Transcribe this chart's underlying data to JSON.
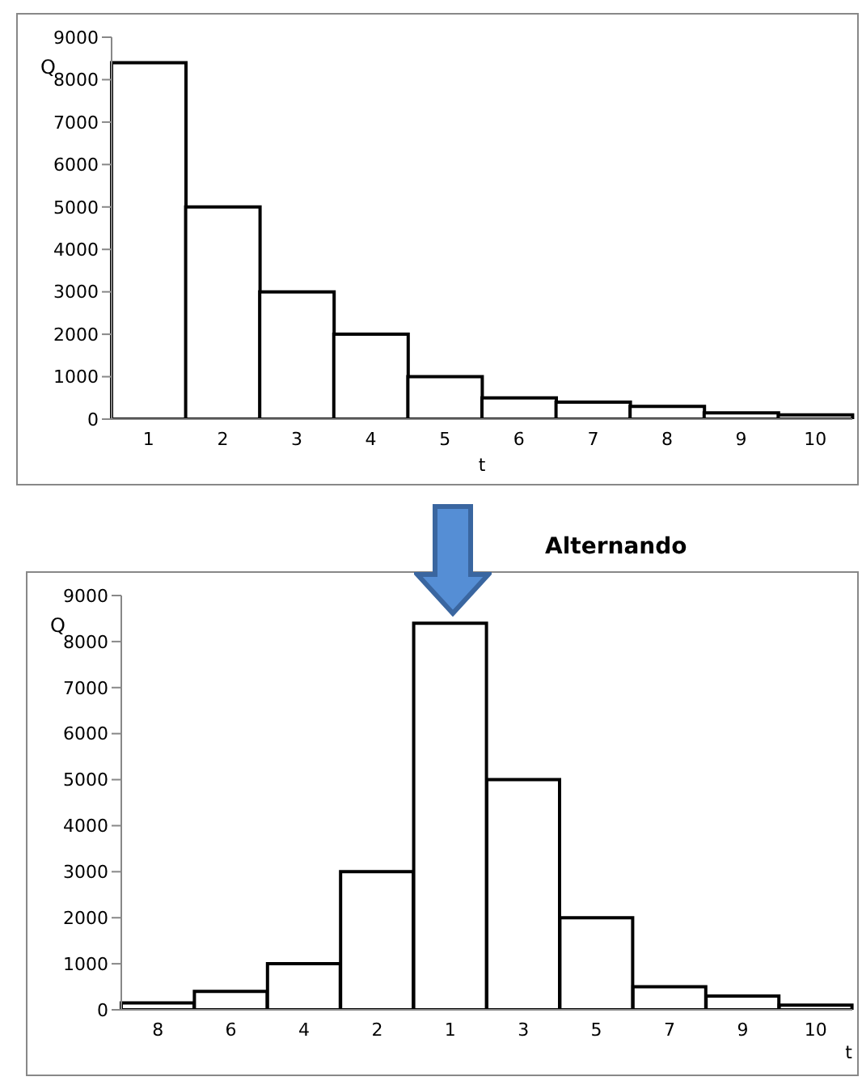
{
  "chart_data": [
    {
      "type": "bar",
      "xlabel": "t",
      "ylabel": "Q",
      "categories": [
        "1",
        "2",
        "3",
        "4",
        "5",
        "6",
        "7",
        "8",
        "9",
        "10"
      ],
      "values": [
        8400,
        5000,
        3000,
        2000,
        1000,
        500,
        400,
        300,
        150,
        100
      ],
      "color": "#ffffff",
      "ylim": [
        0,
        9000
      ],
      "yticks": [
        0,
        1000,
        2000,
        3000,
        4000,
        5000,
        6000,
        7000,
        8000,
        9000
      ],
      "grid": false,
      "legend": false
    },
    {
      "type": "bar",
      "title": "Alternando",
      "xlabel": "t",
      "ylabel": "Q",
      "categories": [
        "8",
        "6",
        "4",
        "2",
        "1",
        "3",
        "5",
        "7",
        "9",
        "10"
      ],
      "values": [
        150,
        400,
        1000,
        3000,
        8400,
        5000,
        2000,
        500,
        300,
        100
      ],
      "color": "#ffffff",
      "ylim": [
        0,
        9000
      ],
      "yticks": [
        0,
        1000,
        2000,
        3000,
        4000,
        5000,
        6000,
        7000,
        8000,
        9000
      ],
      "grid": false,
      "legend": false
    }
  ]
}
